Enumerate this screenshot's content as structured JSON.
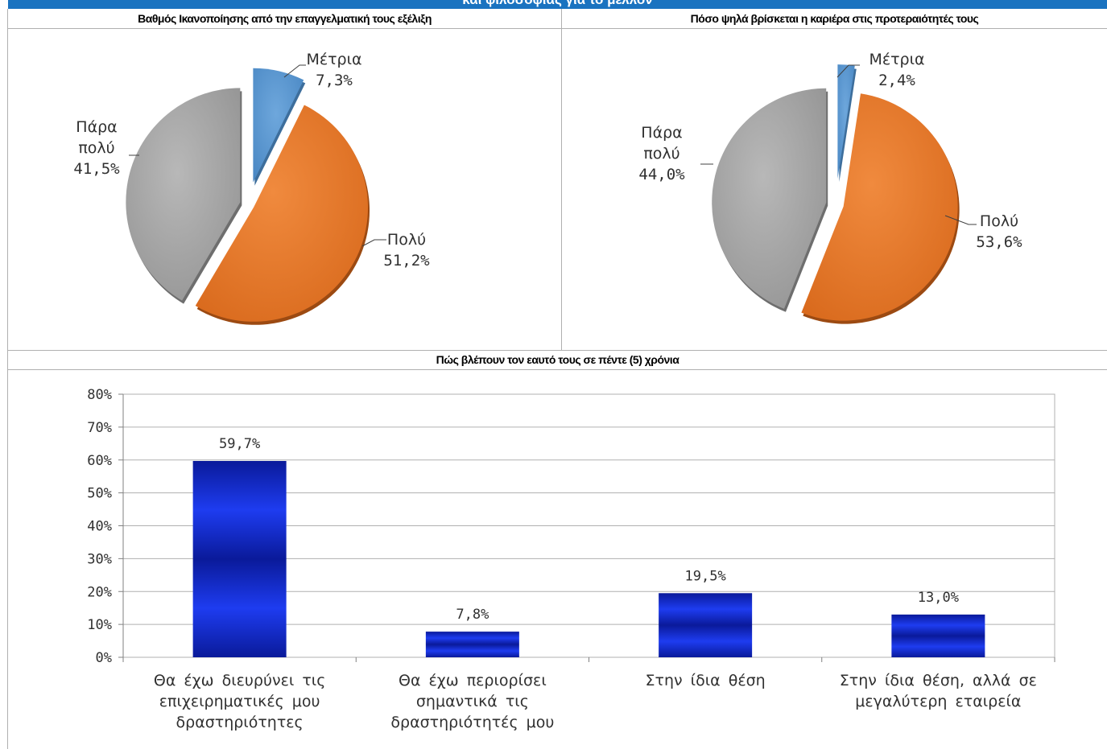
{
  "banner": {
    "text": "και φιλοσοφίας για το μέλλον"
  },
  "chart_data": [
    {
      "type": "pie",
      "title": "Βαθμός Ικανοποίησης από την επαγγελματική τους εξέλιξη",
      "slices": [
        {
          "label": "Μέτρια",
          "value": 7.3,
          "value_label": "7,3%",
          "color": "#5b9bd5"
        },
        {
          "label": "Πολύ",
          "value": 51.2,
          "value_label": "51,2%",
          "color": "#ed7d31"
        },
        {
          "label": "Πάρα πολύ",
          "value": 41.5,
          "value_label": "41,5%",
          "color": "#a5a5a5"
        }
      ]
    },
    {
      "type": "pie",
      "title": "Πόσο ψηλά βρίσκεται η καριέρα στις προτεραιότητές τους",
      "slices": [
        {
          "label": "Μέτρια",
          "value": 2.4,
          "value_label": "2,4%",
          "color": "#5b9bd5"
        },
        {
          "label": "Πολύ",
          "value": 53.6,
          "value_label": "53,6%",
          "color": "#ed7d31"
        },
        {
          "label": "Πάρα πολύ",
          "value": 44.0,
          "value_label": "44,0%",
          "color": "#a5a5a5"
        }
      ]
    },
    {
      "type": "bar",
      "title": "Πώς βλέπουν τον εαυτό τους σε πέντε (5) χρόνια",
      "categories": [
        [
          "Θα έχω διευρύνει τις",
          "επιχειρηματικές μου",
          "δραστηριότητες"
        ],
        [
          "Θα έχω περιορίσει",
          "σημαντικά τις",
          "δραστηριότητές μου"
        ],
        [
          "Στην ίδια θέση"
        ],
        [
          "Στην ίδια θέση, αλλά σε",
          "μεγαλύτερη εταιρεία"
        ]
      ],
      "values": [
        59.7,
        7.8,
        19.5,
        13.0
      ],
      "value_labels": [
        "59,7%",
        "7,8%",
        "19,5%",
        "13,0%"
      ],
      "ylim": [
        0,
        80
      ],
      "yticks": [
        "0%",
        "10%",
        "20%",
        "30%",
        "40%",
        "50%",
        "60%",
        "70%",
        "80%"
      ],
      "grid": true,
      "bar_color": "#1530e0"
    }
  ]
}
